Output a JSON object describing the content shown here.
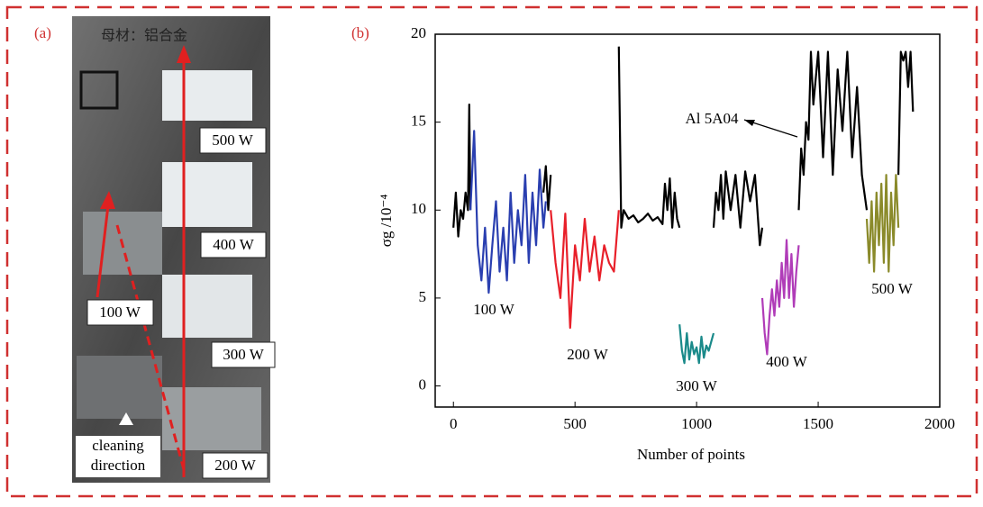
{
  "panel_a": {
    "label": "(a)",
    "header": "母材：铝合金",
    "labels": [
      "500 W",
      "400 W",
      "100 W",
      "300 W",
      "200 W"
    ],
    "direction": [
      "cleaning",
      "direction"
    ]
  },
  "chart_data": {
    "type": "line",
    "panel_label": "(b)",
    "x_label": "Number of points",
    "y_label": "σg /10⁻⁴",
    "xlim": [
      -75,
      2000
    ],
    "xticks": [
      0,
      500,
      1000,
      1500,
      2000
    ],
    "ylim": [
      -1.2,
      20
    ],
    "yticks": [
      0,
      5,
      10,
      15,
      20
    ],
    "grid": false,
    "series": [
      {
        "name": "Al 5A04",
        "color": "#000000",
        "x": [
          0,
          10,
          20,
          30,
          40,
          50,
          60,
          65,
          70,
          200,
          370,
          380,
          390,
          400,
          540,
          680,
          690,
          700,
          720,
          740,
          760,
          780,
          800,
          820,
          840,
          860,
          870,
          880,
          890,
          900,
          910,
          920,
          930,
          1000,
          1070,
          1080,
          1090,
          1100,
          1110,
          1120,
          1140,
          1160,
          1180,
          1200,
          1220,
          1240,
          1260,
          1270,
          1350,
          1420,
          1430,
          1440,
          1450,
          1460,
          1470,
          1480,
          1500,
          1520,
          1540,
          1560,
          1580,
          1600,
          1620,
          1640,
          1660,
          1680,
          1700,
          1760,
          1830,
          1840,
          1850,
          1860,
          1870,
          1880,
          1890
        ],
        "values": [
          9,
          11,
          8.5,
          10,
          9.5,
          11,
          10,
          16,
          10,
          null,
          11,
          12.5,
          10,
          12,
          null,
          19.3,
          9,
          10,
          9.5,
          9.7,
          9.3,
          9.5,
          9.8,
          9.4,
          9.6,
          9.2,
          11.5,
          10,
          11.8,
          9,
          11,
          9.5,
          9,
          null,
          9,
          11,
          10,
          12,
          9.5,
          12.2,
          10,
          12,
          9,
          12.2,
          10.5,
          12,
          8,
          9,
          null,
          10,
          13.5,
          12,
          15,
          14,
          19,
          16,
          19,
          13,
          19,
          12,
          18,
          14.5,
          19,
          13,
          17,
          12,
          10,
          null,
          12,
          19,
          18.5,
          19,
          17,
          19,
          15.6
        ]
      },
      {
        "name": "100 W",
        "color": "#2a3fb0",
        "x": [
          70,
          85,
          100,
          115,
          130,
          145,
          160,
          175,
          190,
          205,
          220,
          235,
          250,
          265,
          280,
          295,
          310,
          325,
          340,
          355,
          370,
          380
        ],
        "values": [
          10,
          14.5,
          8,
          6,
          9,
          5.3,
          8,
          10.5,
          6.5,
          9,
          6,
          11,
          7,
          10,
          8,
          12,
          7,
          11,
          8,
          12.3,
          9,
          10.5
        ]
      },
      {
        "name": "200 W",
        "color": "#e8202a",
        "x": [
          400,
          420,
          440,
          460,
          480,
          500,
          520,
          540,
          560,
          580,
          600,
          620,
          640,
          660,
          680
        ],
        "values": [
          10,
          7,
          5,
          9.8,
          3.3,
          8,
          6,
          9.5,
          6.5,
          8.5,
          6,
          8,
          7,
          6.5,
          10
        ]
      },
      {
        "name": "300 W",
        "color": "#1a8a8a",
        "x": [
          930,
          940,
          950,
          960,
          970,
          980,
          990,
          1000,
          1010,
          1020,
          1030,
          1040,
          1050,
          1060,
          1070
        ],
        "values": [
          3.5,
          2,
          1.3,
          3,
          1.5,
          2.5,
          1.8,
          2.2,
          1.3,
          2.8,
          1.6,
          2.3,
          2,
          2.5,
          3
        ]
      },
      {
        "name": "400 W",
        "color": "#b03cb8",
        "x": [
          1270,
          1280,
          1290,
          1300,
          1310,
          1320,
          1330,
          1340,
          1350,
          1360,
          1370,
          1380,
          1390,
          1400,
          1410,
          1420
        ],
        "values": [
          5,
          3,
          1.8,
          4,
          5.5,
          4,
          6,
          4.5,
          7,
          5,
          8.3,
          5,
          7.5,
          4.5,
          6.5,
          8
        ]
      },
      {
        "name": "500 W",
        "color": "#8a8a2a",
        "x": [
          1700,
          1710,
          1720,
          1730,
          1740,
          1750,
          1760,
          1770,
          1780,
          1790,
          1800,
          1810,
          1820,
          1830
        ],
        "values": [
          9.5,
          7,
          10.5,
          6.5,
          11,
          8,
          11.5,
          7,
          12,
          6.5,
          11,
          8,
          12,
          9
        ]
      }
    ]
  }
}
